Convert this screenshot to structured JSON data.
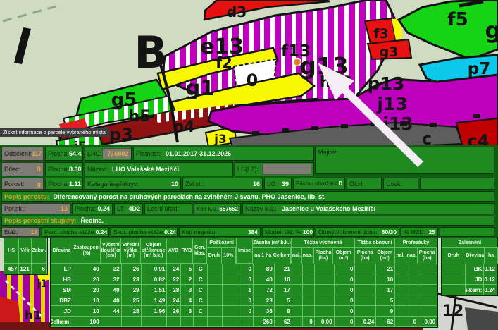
{
  "map": {
    "tooltip": "Získat informace o parcele vybraného místa",
    "big_label": "B",
    "labels": {
      "d3": "d3",
      "e13": "e13",
      "f13": "f13",
      "g13": "g13",
      "h13": "h13",
      "f2": "f2",
      "zero": "0",
      "g1": "g1",
      "f3": "f3",
      "g3": "g3",
      "f5": "f5",
      "g_right": "g",
      "p7": "p7",
      "p13": "p13",
      "j13": "j13",
      "i13": "i13",
      "c": "c",
      "c4": "c4",
      "g5": "g5",
      "h5": "h5",
      "p3": "p3",
      "p4": "p4",
      "j3": "j3",
      "j5": "j5",
      "h1": "h1",
      "j1": "j1",
      "n12": "12"
    }
  },
  "info": {
    "oddeleni": {
      "label": "Oddělení:",
      "value": "117"
    },
    "plocha1": {
      "label": "Plocha:",
      "value": "64.42"
    },
    "lhc": {
      "label": "LHC:",
      "value": "716802"
    },
    "platnost": {
      "label": "Platnost:",
      "value": "01.01.2017-31.12.2026"
    },
    "majitel": {
      "label": "Majitel:",
      "value": ""
    },
    "dilec": {
      "label": "Dílec:",
      "value": "B"
    },
    "plocha2": {
      "label": "Plocha:",
      "value": "8.30"
    },
    "nazev": {
      "label": "Název:",
      "value": "LHO Valašské Meziříčí"
    },
    "lslz": {
      "label": "LS(LZ):",
      "value": ""
    },
    "porost": {
      "label": "Porost:",
      "value": "g"
    },
    "plocha3": {
      "label": "Plocha:",
      "value": "1.11"
    },
    "kategorie": {
      "label": "Kategorie/překryv:",
      "value": "10"
    },
    "zvlst": {
      "label": "Zvl.st.:",
      "value": "16"
    },
    "lo": {
      "label": "LO:",
      "value": "39"
    },
    "pasmo": {
      "label": "Pásmo ohrožení:",
      "value": "D"
    },
    "olh": {
      "label": "OLH:",
      "value": ""
    },
    "usek": {
      "label": "Úsek:",
      "value": ""
    },
    "popis_porostu": {
      "label": "Popis porostu:",
      "value": "Diferencovaný porost na pruhových parcelách na zvlněném J svahu. PHO Jasenice, IIb. st."
    },
    "porsk": {
      "label": "Por.sk.:",
      "value": "13"
    },
    "plocha4": {
      "label": "Plocha:",
      "value": "0.24"
    },
    "lt": {
      "label": "LT:",
      "value": "4D2"
    },
    "lesni_urad": {
      "label": "Lesní úřad:",
      "value": ""
    },
    "kod_ku": {
      "label": "Kód k.ú.:",
      "value": "657662"
    },
    "nazev_ku": {
      "label": "Název k.ú.:",
      "value": "Jasenice u Valašského Meziříčí"
    },
    "popis_skupiny": {
      "label": "Popis porostní skupiny:",
      "value": "Ředina."
    },
    "etaz": {
      "label": "Etáž:",
      "value": "13"
    },
    "parc_plocha": {
      "label": "Parc. plocha etáže:",
      "value": "0.24"
    },
    "skut_plocha": {
      "label": "Skut. plocha etáže:",
      "value": "0.24"
    },
    "kod_majetku": {
      "label": "Kód majetku:",
      "value": "384"
    },
    "model_tez": {
      "label": "Model. těž. %:",
      "value": "100"
    },
    "obmyti": {
      "label": "Obmýtí/obnovní doba:",
      "value": "80/30"
    },
    "mzd": {
      "label": "% MZD:",
      "value": "25"
    }
  },
  "table": {
    "left_headers": [
      "HS",
      "Věk",
      "Zakm."
    ],
    "left_row": [
      "457",
      "121",
      "6"
    ],
    "columns_single": [
      "Dřevina",
      "Zastoupení (%)",
      "Výčetní tloušťka (cm)",
      "Střední výška (m)",
      "Objem stř.kmene (m³ b.k.)",
      "AVB",
      "RVB",
      "Gen. klas."
    ],
    "column_groups": [
      {
        "label": "Poškození",
        "subs": [
          "Druh",
          "10%"
        ]
      },
      {
        "label": "Imise",
        "subs": null
      },
      {
        "label": "Zásoba (m³ b.k.)",
        "subs": [
          "na 1 ha",
          "Celkem"
        ]
      },
      {
        "label": "Těžba výchovná",
        "subs": [
          "nal.",
          "nas.",
          "Plocha (ha)",
          "Objem (m³)"
        ]
      },
      {
        "label": "Těžba obnovní",
        "subs": [
          "Plocha (ha)",
          "Objem (m³)"
        ]
      },
      {
        "label": "Prořezávky",
        "subs": [
          "nal.",
          "nas.",
          "Plocha (ha)"
        ]
      }
    ],
    "rows": [
      [
        "LP",
        "40",
        "32",
        "26",
        "0.91",
        "24",
        "5",
        "C",
        "",
        "",
        "0",
        "89",
        "21",
        "",
        "",
        "",
        "0",
        "",
        "21",
        "",
        "",
        ""
      ],
      [
        "HB",
        "20",
        "32",
        "23",
        "0.82",
        "22",
        "2",
        "C",
        "",
        "",
        "0",
        "40",
        "10",
        "",
        "",
        "",
        "0",
        "",
        "10",
        "",
        "",
        ""
      ],
      [
        "SM",
        "20",
        "40",
        "29",
        "1.51",
        "28",
        "3",
        "C",
        "",
        "",
        "1",
        "72",
        "17",
        "",
        "",
        "",
        "0",
        "",
        "17",
        "",
        "",
        ""
      ],
      [
        "DBZ",
        "10",
        "40",
        "25",
        "1.49",
        "24",
        "4",
        "C",
        "",
        "",
        "0",
        "23",
        "5",
        "",
        "",
        "",
        "0",
        "",
        "5",
        "",
        "",
        ""
      ],
      [
        "JD",
        "10",
        "44",
        "28",
        "1.96",
        "26",
        "3",
        "C",
        "",
        "",
        "0",
        "36",
        "9",
        "",
        "",
        "",
        "0",
        "",
        "9",
        "",
        "",
        ""
      ],
      [
        "Celkem:",
        "100",
        "",
        "",
        "",
        "",
        "",
        "",
        "",
        "",
        "",
        "260",
        "62",
        "",
        "0",
        "0.00",
        "0",
        "0.24",
        "62",
        "",
        "0",
        "0.00"
      ]
    ],
    "zalesneni": {
      "label": "Zalesnění",
      "subs": [
        "Druh",
        "Dřevina",
        "ha"
      ],
      "rows": [
        [
          "",
          "BK",
          "0.12"
        ],
        [
          "",
          "JD",
          "0.12"
        ],
        [
          "",
          "Celkem:",
          "0.24"
        ]
      ]
    }
  }
}
